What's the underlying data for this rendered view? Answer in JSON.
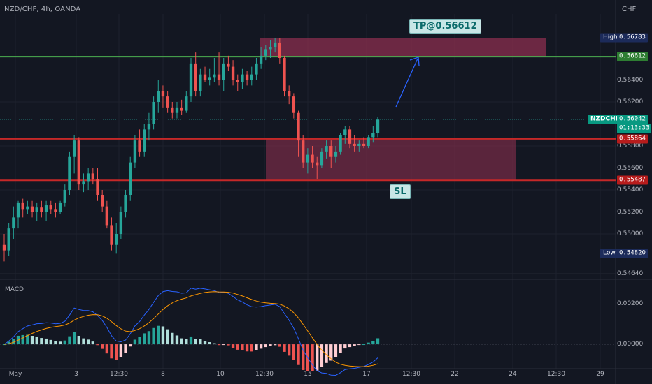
{
  "header": {
    "title": "NZD/CHF, 4h, OANDA",
    "currency": "CHF"
  },
  "macd": {
    "label": "MACD",
    "ticks": [
      {
        "label": "0.00200",
        "value": 0.002
      },
      {
        "label": "0.00000",
        "value": 0
      }
    ]
  },
  "yaxis": {
    "ticks": [
      {
        "label": "0.56400",
        "value": 0.564
      },
      {
        "label": "0.56200",
        "value": 0.562
      },
      {
        "label": "0.55800",
        "value": 0.558
      },
      {
        "label": "0.55600",
        "value": 0.556
      },
      {
        "label": "0.55400",
        "value": 0.554
      },
      {
        "label": "0.55200",
        "value": 0.552
      },
      {
        "label": "0.55000",
        "value": 0.55
      },
      {
        "label": "0.54640",
        "value": 0.5464
      }
    ]
  },
  "badges": {
    "high": {
      "label": "High",
      "value": "0.56783",
      "price": 0.56783
    },
    "low": {
      "label": "Low",
      "value": "0.54820",
      "price": 0.5482
    },
    "tp": {
      "value": "0.56612",
      "price": 0.56612
    },
    "entry": {
      "value": "0.55864",
      "price": 0.55864
    },
    "sl": {
      "value": "0.55487",
      "price": 0.55487
    },
    "current": {
      "symbol": "NZDCHF",
      "value": "0.56042",
      "countdown": "01:13:33",
      "price": 0.56042
    }
  },
  "xaxis": {
    "ticks": [
      {
        "label": "May",
        "x": 22
      },
      {
        "label": "3",
        "x": 109
      },
      {
        "label": "12:30",
        "x": 170
      },
      {
        "label": "8",
        "x": 233
      },
      {
        "label": "10",
        "x": 315
      },
      {
        "label": "12:30",
        "x": 378
      },
      {
        "label": "15",
        "x": 440
      },
      {
        "label": "17",
        "x": 524
      },
      {
        "label": "12:30",
        "x": 588
      },
      {
        "label": "22",
        "x": 650
      },
      {
        "label": "24",
        "x": 733
      },
      {
        "label": "12:30",
        "x": 795
      },
      {
        "label": "29",
        "x": 858
      }
    ]
  },
  "annotations": {
    "tp": "TP@0.56612",
    "sl": "SL"
  },
  "colors": {
    "up": "#26a69a",
    "down": "#ef5350",
    "zone": "#8b2f4f",
    "tp_line": "#4caf50",
    "sl_line": "#c62828",
    "macd_line": "#2962ff",
    "signal_line": "#ff9800"
  },
  "chart_data": {
    "type": "candlestick",
    "symbol": "NZD/CHF",
    "timeframe": "4h",
    "source": "OANDA",
    "ylim": [
      0.546,
      0.57
    ],
    "candles": [
      [
        0.549,
        0.55,
        0.5475,
        0.5485
      ],
      [
        0.5485,
        0.551,
        0.548,
        0.5505
      ],
      [
        0.5505,
        0.5525,
        0.5495,
        0.5515
      ],
      [
        0.5515,
        0.553,
        0.5505,
        0.5528
      ],
      [
        0.5528,
        0.5532,
        0.5515,
        0.5522
      ],
      [
        0.5522,
        0.553,
        0.5518,
        0.5525
      ],
      [
        0.5525,
        0.553,
        0.5515,
        0.552
      ],
      [
        0.552,
        0.5528,
        0.5512,
        0.5524
      ],
      [
        0.5524,
        0.553,
        0.5515,
        0.552
      ],
      [
        0.552,
        0.553,
        0.5512,
        0.5526
      ],
      [
        0.5526,
        0.553,
        0.5518,
        0.5522
      ],
      [
        0.5522,
        0.5528,
        0.5515,
        0.552
      ],
      [
        0.552,
        0.553,
        0.5518,
        0.5528
      ],
      [
        0.5528,
        0.5545,
        0.5525,
        0.554
      ],
      [
        0.554,
        0.5575,
        0.5535,
        0.557
      ],
      [
        0.557,
        0.559,
        0.5555,
        0.5585
      ],
      [
        0.5585,
        0.5588,
        0.554,
        0.5545
      ],
      [
        0.5545,
        0.5555,
        0.5538,
        0.5548
      ],
      [
        0.5548,
        0.556,
        0.554,
        0.5555
      ],
      [
        0.5555,
        0.556,
        0.5545,
        0.555
      ],
      [
        0.555,
        0.556,
        0.553,
        0.5535
      ],
      [
        0.5535,
        0.554,
        0.552,
        0.5525
      ],
      [
        0.5525,
        0.553,
        0.5505,
        0.5508
      ],
      [
        0.5508,
        0.5515,
        0.5485,
        0.549
      ],
      [
        0.549,
        0.551,
        0.5482,
        0.55
      ],
      [
        0.55,
        0.5525,
        0.5495,
        0.552
      ],
      [
        0.552,
        0.554,
        0.5515,
        0.5535
      ],
      [
        0.5535,
        0.557,
        0.553,
        0.5565
      ],
      [
        0.5565,
        0.559,
        0.556,
        0.5585
      ],
      [
        0.5585,
        0.5595,
        0.557,
        0.5575
      ],
      [
        0.5575,
        0.56,
        0.557,
        0.5595
      ],
      [
        0.5595,
        0.561,
        0.5585,
        0.56
      ],
      [
        0.56,
        0.5625,
        0.5595,
        0.562
      ],
      [
        0.562,
        0.564,
        0.561,
        0.563
      ],
      [
        0.563,
        0.5635,
        0.5615,
        0.5625
      ],
      [
        0.5625,
        0.563,
        0.561,
        0.5615
      ],
      [
        0.5615,
        0.562,
        0.5605,
        0.561
      ],
      [
        0.561,
        0.562,
        0.5605,
        0.5615
      ],
      [
        0.5615,
        0.5622,
        0.5608,
        0.5612
      ],
      [
        0.5612,
        0.563,
        0.561,
        0.5625
      ],
      [
        0.5625,
        0.566,
        0.562,
        0.5655
      ],
      [
        0.5655,
        0.5665,
        0.5625,
        0.563
      ],
      [
        0.563,
        0.565,
        0.5625,
        0.5645
      ],
      [
        0.5645,
        0.5652,
        0.5638,
        0.564
      ],
      [
        0.564,
        0.565,
        0.5635,
        0.5642
      ],
      [
        0.5642,
        0.566,
        0.5638,
        0.5645
      ],
      [
        0.5645,
        0.5665,
        0.5635,
        0.564
      ],
      [
        0.564,
        0.566,
        0.563,
        0.5655
      ],
      [
        0.5655,
        0.5662,
        0.5648,
        0.5652
      ],
      [
        0.5652,
        0.5658,
        0.5635,
        0.564
      ],
      [
        0.564,
        0.5645,
        0.563,
        0.5638
      ],
      [
        0.5638,
        0.565,
        0.5632,
        0.5645
      ],
      [
        0.5645,
        0.5648,
        0.5635,
        0.564
      ],
      [
        0.564,
        0.5652,
        0.5635,
        0.5645
      ],
      [
        0.5645,
        0.566,
        0.564,
        0.5655
      ],
      [
        0.5655,
        0.567,
        0.565,
        0.5662
      ],
      [
        0.5662,
        0.5672,
        0.5658,
        0.5668
      ],
      [
        0.5668,
        0.5676,
        0.566,
        0.567
      ],
      [
        0.567,
        0.5678,
        0.5665,
        0.5674
      ],
      [
        0.5674,
        0.5678,
        0.5655,
        0.566
      ],
      [
        0.566,
        0.5662,
        0.5625,
        0.563
      ],
      [
        0.563,
        0.5635,
        0.5618,
        0.5625
      ],
      [
        0.5625,
        0.5628,
        0.5605,
        0.561
      ],
      [
        0.561,
        0.5612,
        0.557,
        0.5585
      ],
      [
        0.5585,
        0.559,
        0.556,
        0.5565
      ],
      [
        0.5565,
        0.5578,
        0.5555,
        0.5572
      ],
      [
        0.5572,
        0.558,
        0.556,
        0.5565
      ],
      [
        0.5565,
        0.557,
        0.555,
        0.5562
      ],
      [
        0.5562,
        0.5578,
        0.556,
        0.5575
      ],
      [
        0.5575,
        0.5585,
        0.5568,
        0.558
      ],
      [
        0.558,
        0.5585,
        0.556,
        0.557
      ],
      [
        0.557,
        0.558,
        0.5565,
        0.5575
      ],
      [
        0.5575,
        0.5592,
        0.5572,
        0.559
      ],
      [
        0.559,
        0.5598,
        0.5582,
        0.5595
      ],
      [
        0.5595,
        0.5598,
        0.5578,
        0.5582
      ],
      [
        0.5582,
        0.559,
        0.5575,
        0.558
      ],
      [
        0.558,
        0.5585,
        0.5575,
        0.5582
      ],
      [
        0.5582,
        0.5588,
        0.5578,
        0.558
      ],
      [
        0.558,
        0.559,
        0.5578,
        0.5588
      ],
      [
        0.5588,
        0.5598,
        0.5583,
        0.5592
      ],
      [
        0.5592,
        0.5606,
        0.5588,
        0.5604
      ]
    ],
    "zones": [
      {
        "name": "tp-zone",
        "top": 0.56783,
        "bottom": 0.56612
      },
      {
        "name": "entry-zone",
        "top": 0.55864,
        "bottom": 0.55487
      }
    ],
    "lines": {
      "take_profit": 0.56612,
      "entry": 0.55864,
      "stop_loss": 0.55487,
      "current": 0.56042
    },
    "macd_ylim": [
      -0.0012,
      0.0032
    ]
  }
}
